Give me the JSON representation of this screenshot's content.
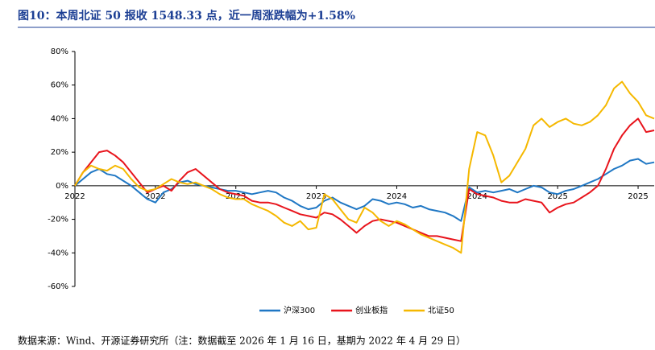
{
  "chart_data": {
    "type": "line",
    "title": "图10：本周北证 50 报收 1548.33 点，近一周涨跌幅为+1.58%",
    "source": "数据来源：Wind、开源证券研究所（注：数据截至 2026 年 1 月 16 日，基期为 2022 年 4 月 29 日）",
    "categories": [
      "2022",
      null,
      null,
      null,
      null,
      null,
      null,
      null,
      null,
      null,
      "2022",
      null,
      null,
      null,
      null,
      null,
      null,
      null,
      null,
      null,
      "2023",
      null,
      null,
      null,
      null,
      null,
      null,
      null,
      null,
      null,
      "2023",
      null,
      null,
      null,
      null,
      null,
      null,
      null,
      null,
      null,
      "2024",
      null,
      null,
      null,
      null,
      null,
      null,
      null,
      null,
      null,
      "2024",
      null,
      null,
      null,
      null,
      null,
      null,
      null,
      null,
      null,
      "2025",
      null,
      null,
      null,
      null,
      null,
      null,
      null,
      null,
      null,
      "2025",
      null,
      null
    ],
    "series": [
      {
        "name": "沪深300",
        "color": "#1f77c4",
        "values": [
          0,
          4,
          8,
          10,
          7,
          6,
          3,
          0,
          -4,
          -8,
          -10,
          -4,
          -2,
          2,
          3,
          1,
          0,
          -1,
          -2,
          -3,
          -3,
          -4,
          -5,
          -4,
          -3,
          -4,
          -7,
          -9,
          -12,
          -14,
          -13,
          -9,
          -7,
          -10,
          -12,
          -14,
          -12,
          -8,
          -9,
          -11,
          -10,
          -11,
          -13,
          -12,
          -14,
          -15,
          -16,
          -18,
          -21,
          -1,
          -4,
          -3,
          -4,
          -3,
          -2,
          -4,
          -2,
          0,
          -1,
          -4,
          -5,
          -3,
          -2,
          0,
          2,
          4,
          7,
          10,
          12,
          15,
          16,
          13,
          14
        ]
      },
      {
        "name": "创业板指",
        "color": "#e8141c",
        "values": [
          0,
          8,
          14,
          20,
          21,
          18,
          14,
          8,
          2,
          -4,
          -2,
          0,
          -3,
          3,
          8,
          10,
          6,
          2,
          -2,
          -4,
          -5,
          -6,
          -9,
          -10,
          -10,
          -11,
          -13,
          -15,
          -17,
          -18,
          -19,
          -16,
          -17,
          -20,
          -24,
          -28,
          -24,
          -21,
          -20,
          -21,
          -22,
          -24,
          -26,
          -28,
          -30,
          -30,
          -31,
          -32,
          -33,
          -2,
          -5,
          -6,
          -7,
          -9,
          -10,
          -10,
          -8,
          -9,
          -10,
          -16,
          -13,
          -11,
          -10,
          -7,
          -4,
          0,
          10,
          22,
          30,
          36,
          40,
          32,
          33
        ]
      },
      {
        "name": "北证50",
        "color": "#f5b800",
        "values": [
          0,
          8,
          12,
          10,
          9,
          12,
          10,
          4,
          -1,
          -3,
          -2,
          1,
          4,
          2,
          1,
          2,
          0,
          -2,
          -5,
          -7,
          -8,
          -8,
          -11,
          -13,
          -15,
          -18,
          -22,
          -24,
          -21,
          -26,
          -25,
          -5,
          -8,
          -14,
          -20,
          -22,
          -13,
          -16,
          -21,
          -24,
          -21,
          -23,
          -26,
          -29,
          -31,
          -33,
          -35,
          -37,
          -40,
          10,
          32,
          30,
          18,
          2,
          6,
          14,
          22,
          36,
          40,
          35,
          38,
          40,
          37,
          36,
          38,
          42,
          48,
          58,
          62,
          55,
          50,
          42,
          40
        ]
      }
    ],
    "ylim": [
      -60,
      80
    ],
    "yticks": [
      {
        "value": -60,
        "label": "-60%"
      },
      {
        "value": -40,
        "label": "-40%"
      },
      {
        "value": -20,
        "label": "-20%"
      },
      {
        "value": 0,
        "label": "0%"
      },
      {
        "value": 20,
        "label": "20%"
      },
      {
        "value": 40,
        "label": "40%"
      },
      {
        "value": 60,
        "label": "60%"
      },
      {
        "value": 80,
        "label": "80%"
      }
    ],
    "grid": false,
    "legend": "bottom"
  }
}
